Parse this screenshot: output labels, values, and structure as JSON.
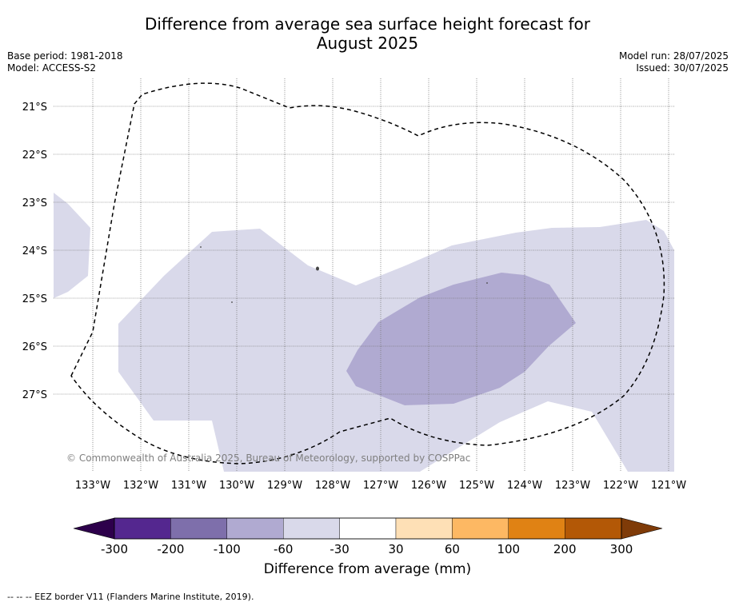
{
  "map": {
    "title_line1": "Difference from average sea surface height forecast for",
    "title_line2": "August 2025",
    "base_period": "Base period: 1981-2018",
    "model": "Model: ACCESS-S2",
    "model_run": "Model run: 28/07/2025",
    "issued": "Issued: 30/07/2025",
    "copyright": "© Commonwealth of Australia 2025, Bureau of Meteorology, supported by COSPPac",
    "lat_labels": [
      "21°S",
      "22°S",
      "23°S",
      "24°S",
      "25°S",
      "26°S",
      "27°S"
    ],
    "lon_labels": [
      "133°W",
      "132°W",
      "131°W",
      "130°W",
      "129°W",
      "128°W",
      "127°W",
      "126°W",
      "125°W",
      "124°W",
      "123°W",
      "122°W",
      "121°W"
    ],
    "footer_note": "--  --  -- EEZ border V11 (Flanders Marine Institute, 2019)."
  },
  "colorbar": {
    "label": "Difference from average (mm)",
    "ticks": [
      "-300",
      "-200",
      "-100",
      "-60",
      "-30",
      "30",
      "60",
      "100",
      "200",
      "300"
    ],
    "colors": [
      "#54278f",
      "#7e6fab",
      "#b0aad1",
      "#d9d9ea",
      "#ffffff",
      "#fee0b6",
      "#fdb863",
      "#e08214",
      "#b35806"
    ],
    "under_color": "#2d004b",
    "over_color": "#7f3b08"
  }
}
